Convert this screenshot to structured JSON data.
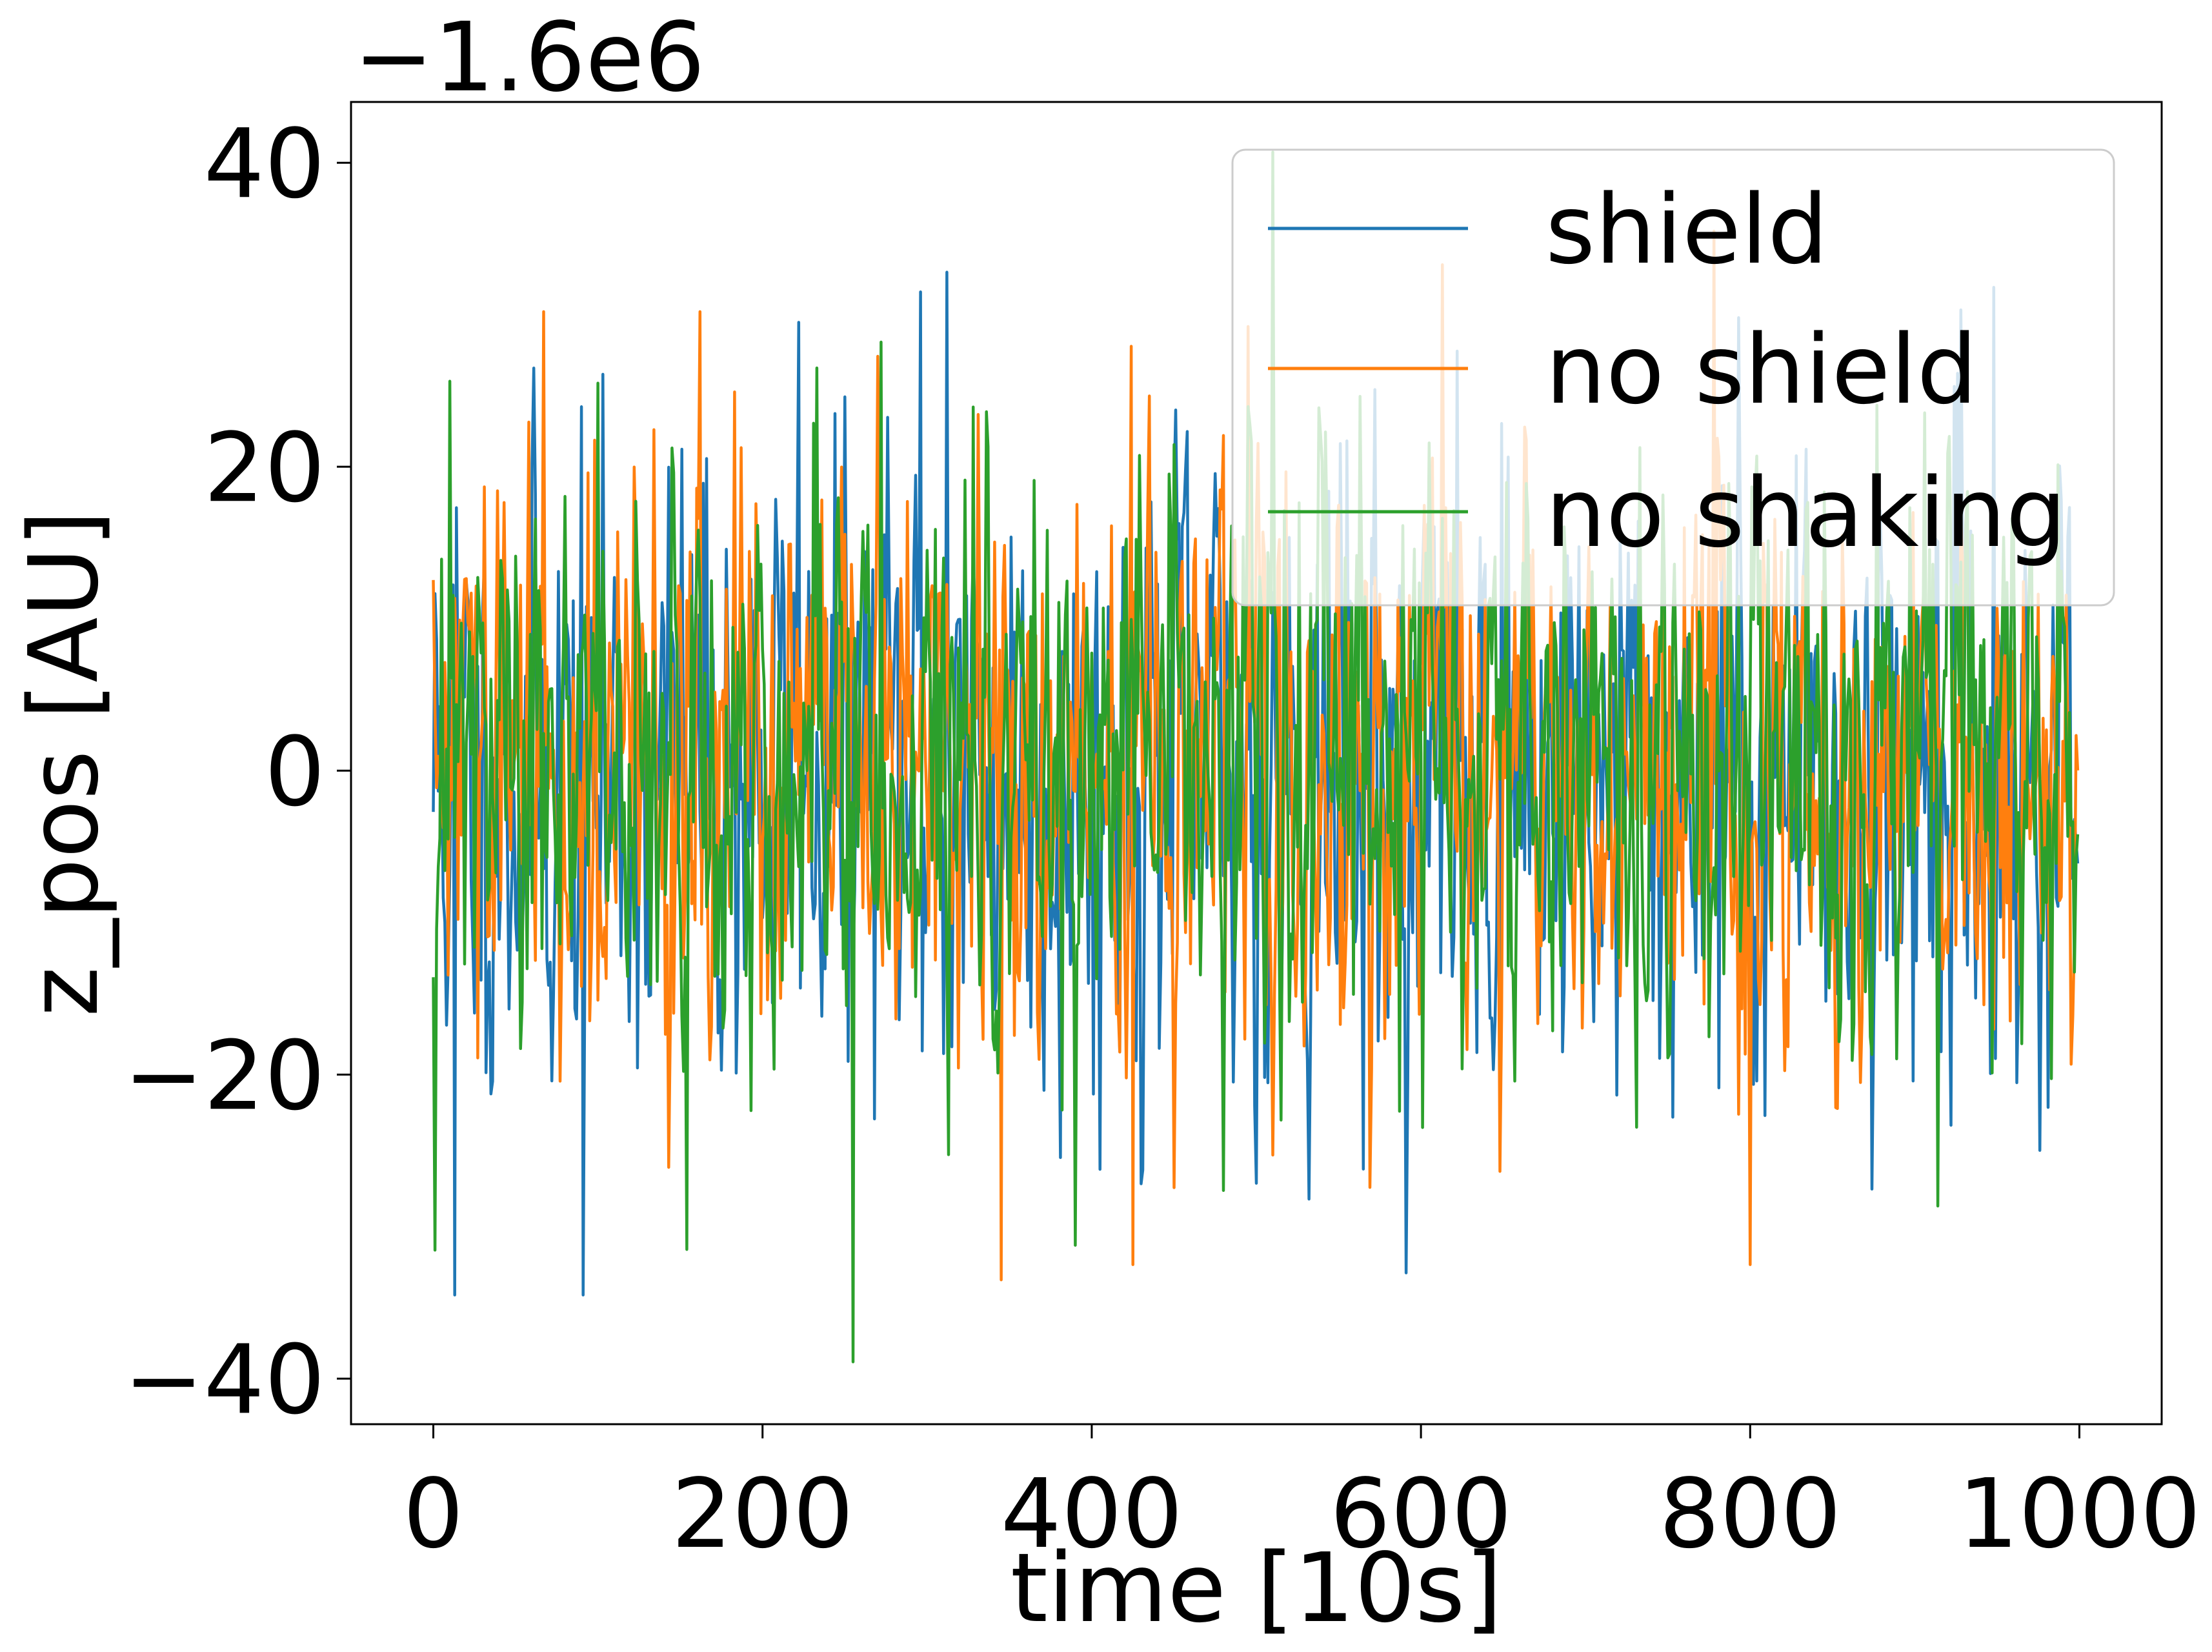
{
  "chart_data": {
    "type": "line",
    "title": "",
    "xlabel": "time [10s]",
    "ylabel": "z_pos [AU]",
    "offset_text": "−1.6e6",
    "xlim": [
      -50,
      1050
    ],
    "ylim": [
      -43,
      44
    ],
    "xticks": [
      0,
      200,
      400,
      600,
      800,
      1000
    ],
    "yticks": [
      -40,
      -20,
      0,
      20,
      40
    ],
    "xtick_labels": [
      "0",
      "200",
      "400",
      "600",
      "800",
      "1000"
    ],
    "ytick_labels": [
      "−40",
      "−20",
      "0",
      "20",
      "40"
    ],
    "grid": false,
    "legend_position": "top-right",
    "n_points": 1000,
    "x_start": 0,
    "x_step": 1,
    "series": [
      {
        "name": "shield",
        "color": "#1f77b4",
        "seed": 11,
        "amplitude": 11.5,
        "min": -34.5,
        "max": 32.8,
        "extremes": [
          [
            13,
            -34.5
          ],
          [
            91,
            -34.5
          ],
          [
            312,
            32.8
          ],
          [
            296,
            31.5
          ],
          [
            948,
            31.8
          ],
          [
            222,
            29.5
          ]
        ]
      },
      {
        "name": "no shield",
        "color": "#ff7f0e",
        "seed": 29,
        "amplitude": 10.5,
        "min": -33.5,
        "max": 35.5,
        "extremes": [
          [
            345,
            -33.5
          ],
          [
            800,
            -32.5
          ],
          [
            425,
            -32.5
          ],
          [
            67,
            30.2
          ],
          [
            162,
            30.2
          ],
          [
            778,
            35.5
          ]
        ]
      },
      {
        "name": "no shaking",
        "color": "#2ca02c",
        "seed": 47,
        "amplitude": 10.0,
        "min": -38.9,
        "max": 40.7,
        "extremes": [
          [
            255,
            -38.9
          ],
          [
            154,
            -31.5
          ],
          [
            510,
            40.7
          ],
          [
            272,
            28.2
          ],
          [
            233,
            26.5
          ],
          [
            100,
            25.5
          ]
        ]
      }
    ]
  }
}
